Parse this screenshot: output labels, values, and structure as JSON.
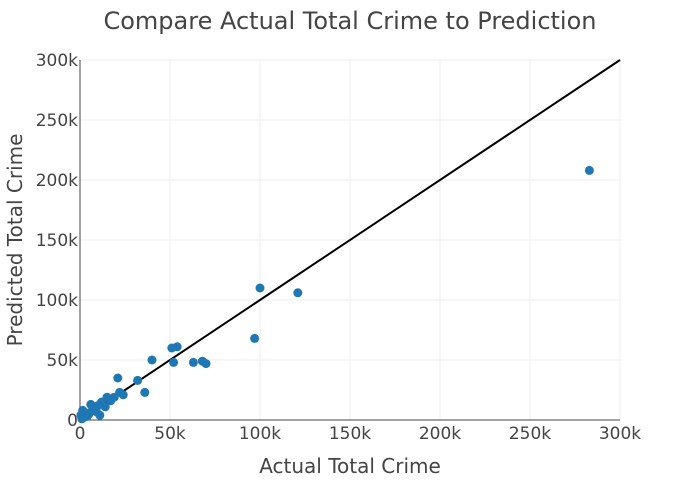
{
  "chart_data": {
    "type": "scatter",
    "title": "Compare Actual Total Crime to Prediction",
    "xlabel": "Actual Total Crime",
    "ylabel": "Predicted Total Crime",
    "xlim": [
      0,
      300000
    ],
    "ylim": [
      0,
      300000
    ],
    "x_ticks": [
      0,
      50000,
      100000,
      150000,
      200000,
      250000,
      300000
    ],
    "y_ticks": [
      0,
      50000,
      100000,
      150000,
      200000,
      250000,
      300000
    ],
    "x_tick_labels": [
      "0",
      "50k",
      "100k",
      "150k",
      "200k",
      "250k",
      "300k"
    ],
    "y_tick_labels": [
      "0",
      "50k",
      "100k",
      "150k",
      "200k",
      "250k",
      "300k"
    ],
    "grid": true,
    "marker_color": "#1f77b4",
    "reference_line": {
      "type": "y=x",
      "color": "#000000",
      "from": [
        0,
        0
      ],
      "to": [
        300000,
        300000
      ]
    },
    "points": [
      {
        "x": 283000,
        "y": 208000
      },
      {
        "x": 121000,
        "y": 106000
      },
      {
        "x": 100000,
        "y": 110000
      },
      {
        "x": 97000,
        "y": 68000
      },
      {
        "x": 70000,
        "y": 47000
      },
      {
        "x": 68000,
        "y": 49000
      },
      {
        "x": 63000,
        "y": 48000
      },
      {
        "x": 54000,
        "y": 61000
      },
      {
        "x": 51000,
        "y": 60000
      },
      {
        "x": 52000,
        "y": 48000
      },
      {
        "x": 40000,
        "y": 50000
      },
      {
        "x": 36000,
        "y": 23000
      },
      {
        "x": 32000,
        "y": 33000
      },
      {
        "x": 24000,
        "y": 21000
      },
      {
        "x": 22000,
        "y": 23000
      },
      {
        "x": 21000,
        "y": 35000
      },
      {
        "x": 19000,
        "y": 19000
      },
      {
        "x": 17000,
        "y": 16000
      },
      {
        "x": 15000,
        "y": 19000
      },
      {
        "x": 14000,
        "y": 11000
      },
      {
        "x": 12000,
        "y": 15000
      },
      {
        "x": 11000,
        "y": 4000
      },
      {
        "x": 10000,
        "y": 12000
      },
      {
        "x": 9000,
        "y": 7000
      },
      {
        "x": 8000,
        "y": 10000
      },
      {
        "x": 7000,
        "y": 9000
      },
      {
        "x": 6000,
        "y": 13000
      },
      {
        "x": 5000,
        "y": 5000
      },
      {
        "x": 4000,
        "y": 3000
      },
      {
        "x": 3000,
        "y": 6000
      },
      {
        "x": 2000,
        "y": 2000
      },
      {
        "x": 1500,
        "y": 8000
      },
      {
        "x": 1000,
        "y": 1000
      },
      {
        "x": 500,
        "y": 4000
      }
    ]
  }
}
